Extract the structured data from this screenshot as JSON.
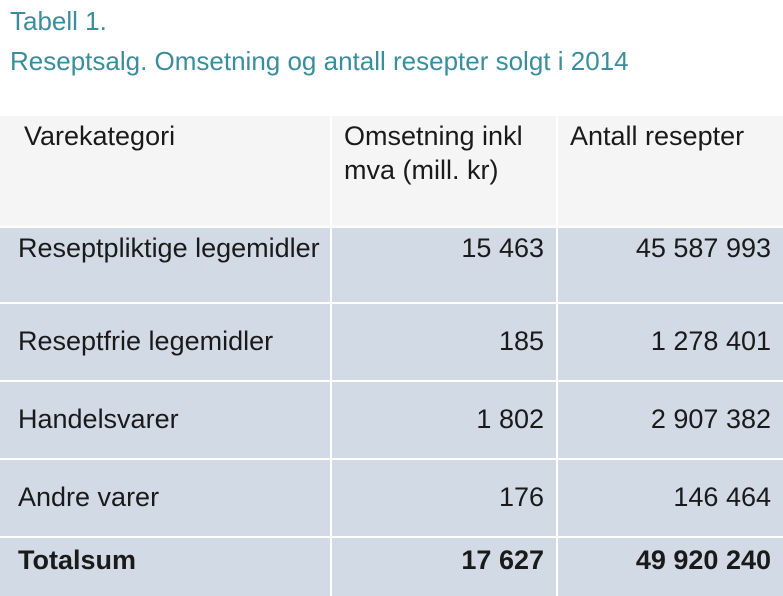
{
  "caption": {
    "label": "Tabell 1.",
    "title": "Reseptsalg. Omsetning og antall resepter solgt i 2014"
  },
  "table": {
    "headers": [
      "Varekategori",
      "Omsetning inkl mva (mill. kr)",
      "Antall resepter"
    ],
    "rows": [
      [
        "Reseptpliktige legemidler",
        "15 463",
        "45 587 993"
      ],
      [
        "Reseptfrie legemidler",
        "185",
        "1 278 401"
      ],
      [
        "Handelsvarer",
        "1 802",
        "2 907 382"
      ],
      [
        "Andre varer",
        "176",
        "146 464"
      ]
    ],
    "total": [
      "Totalsum",
      "17 627",
      "49 920 240"
    ]
  },
  "colors": {
    "caption": "#3a8e9b",
    "header_bg": "#f5f5f6",
    "body_bg": "#d2dae6",
    "divider": "#ffffff"
  }
}
